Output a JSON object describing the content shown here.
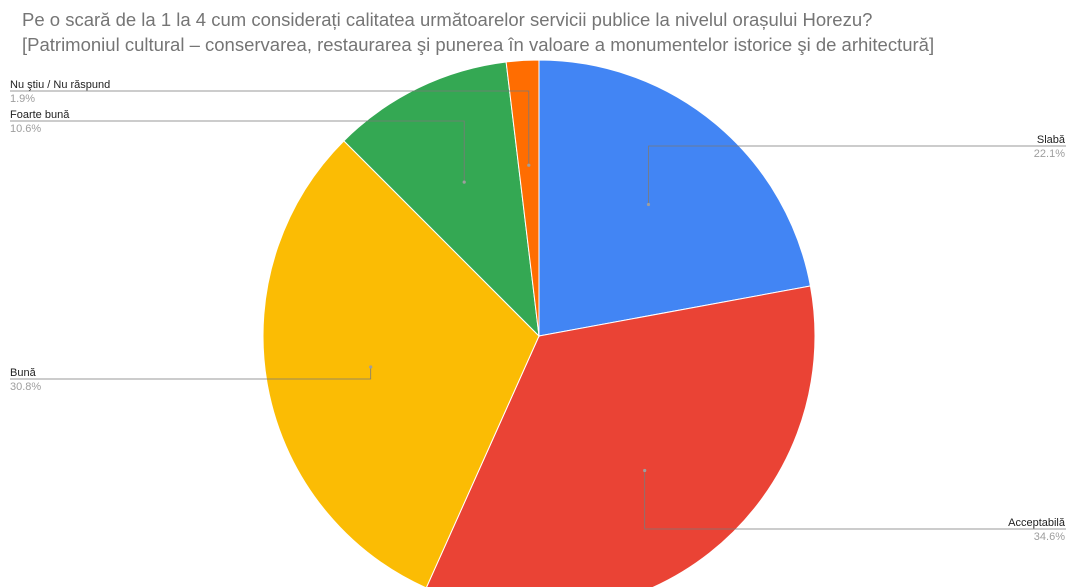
{
  "chart_data": {
    "type": "pie",
    "title": "Pe o scară de la 1 la 4 cum considerați calitatea următoarelor servicii publice la nivelul orașului Horezu?",
    "subtitle": "[Patrimoniul cultural – conservarea, restaurarea şi punerea în valoare a monumentelor istorice şi de arhitectură]",
    "slices": [
      {
        "label": "Slabă",
        "value": 22.1,
        "pct_label": "22.1%",
        "color": "#4285f4"
      },
      {
        "label": "Acceptabilă",
        "value": 34.6,
        "pct_label": "34.6%",
        "color": "#ea4335"
      },
      {
        "label": "Bună",
        "value": 30.8,
        "pct_label": "30.8%",
        "color": "#fbbc04"
      },
      {
        "label": "Foarte bună",
        "value": 10.6,
        "pct_label": "10.6%",
        "color": "#34a853"
      },
      {
        "label": "Nu ştiu / Nu răspund",
        "value": 1.9,
        "pct_label": "1.9%",
        "color": "#ff6d01"
      }
    ],
    "legend": "none"
  }
}
